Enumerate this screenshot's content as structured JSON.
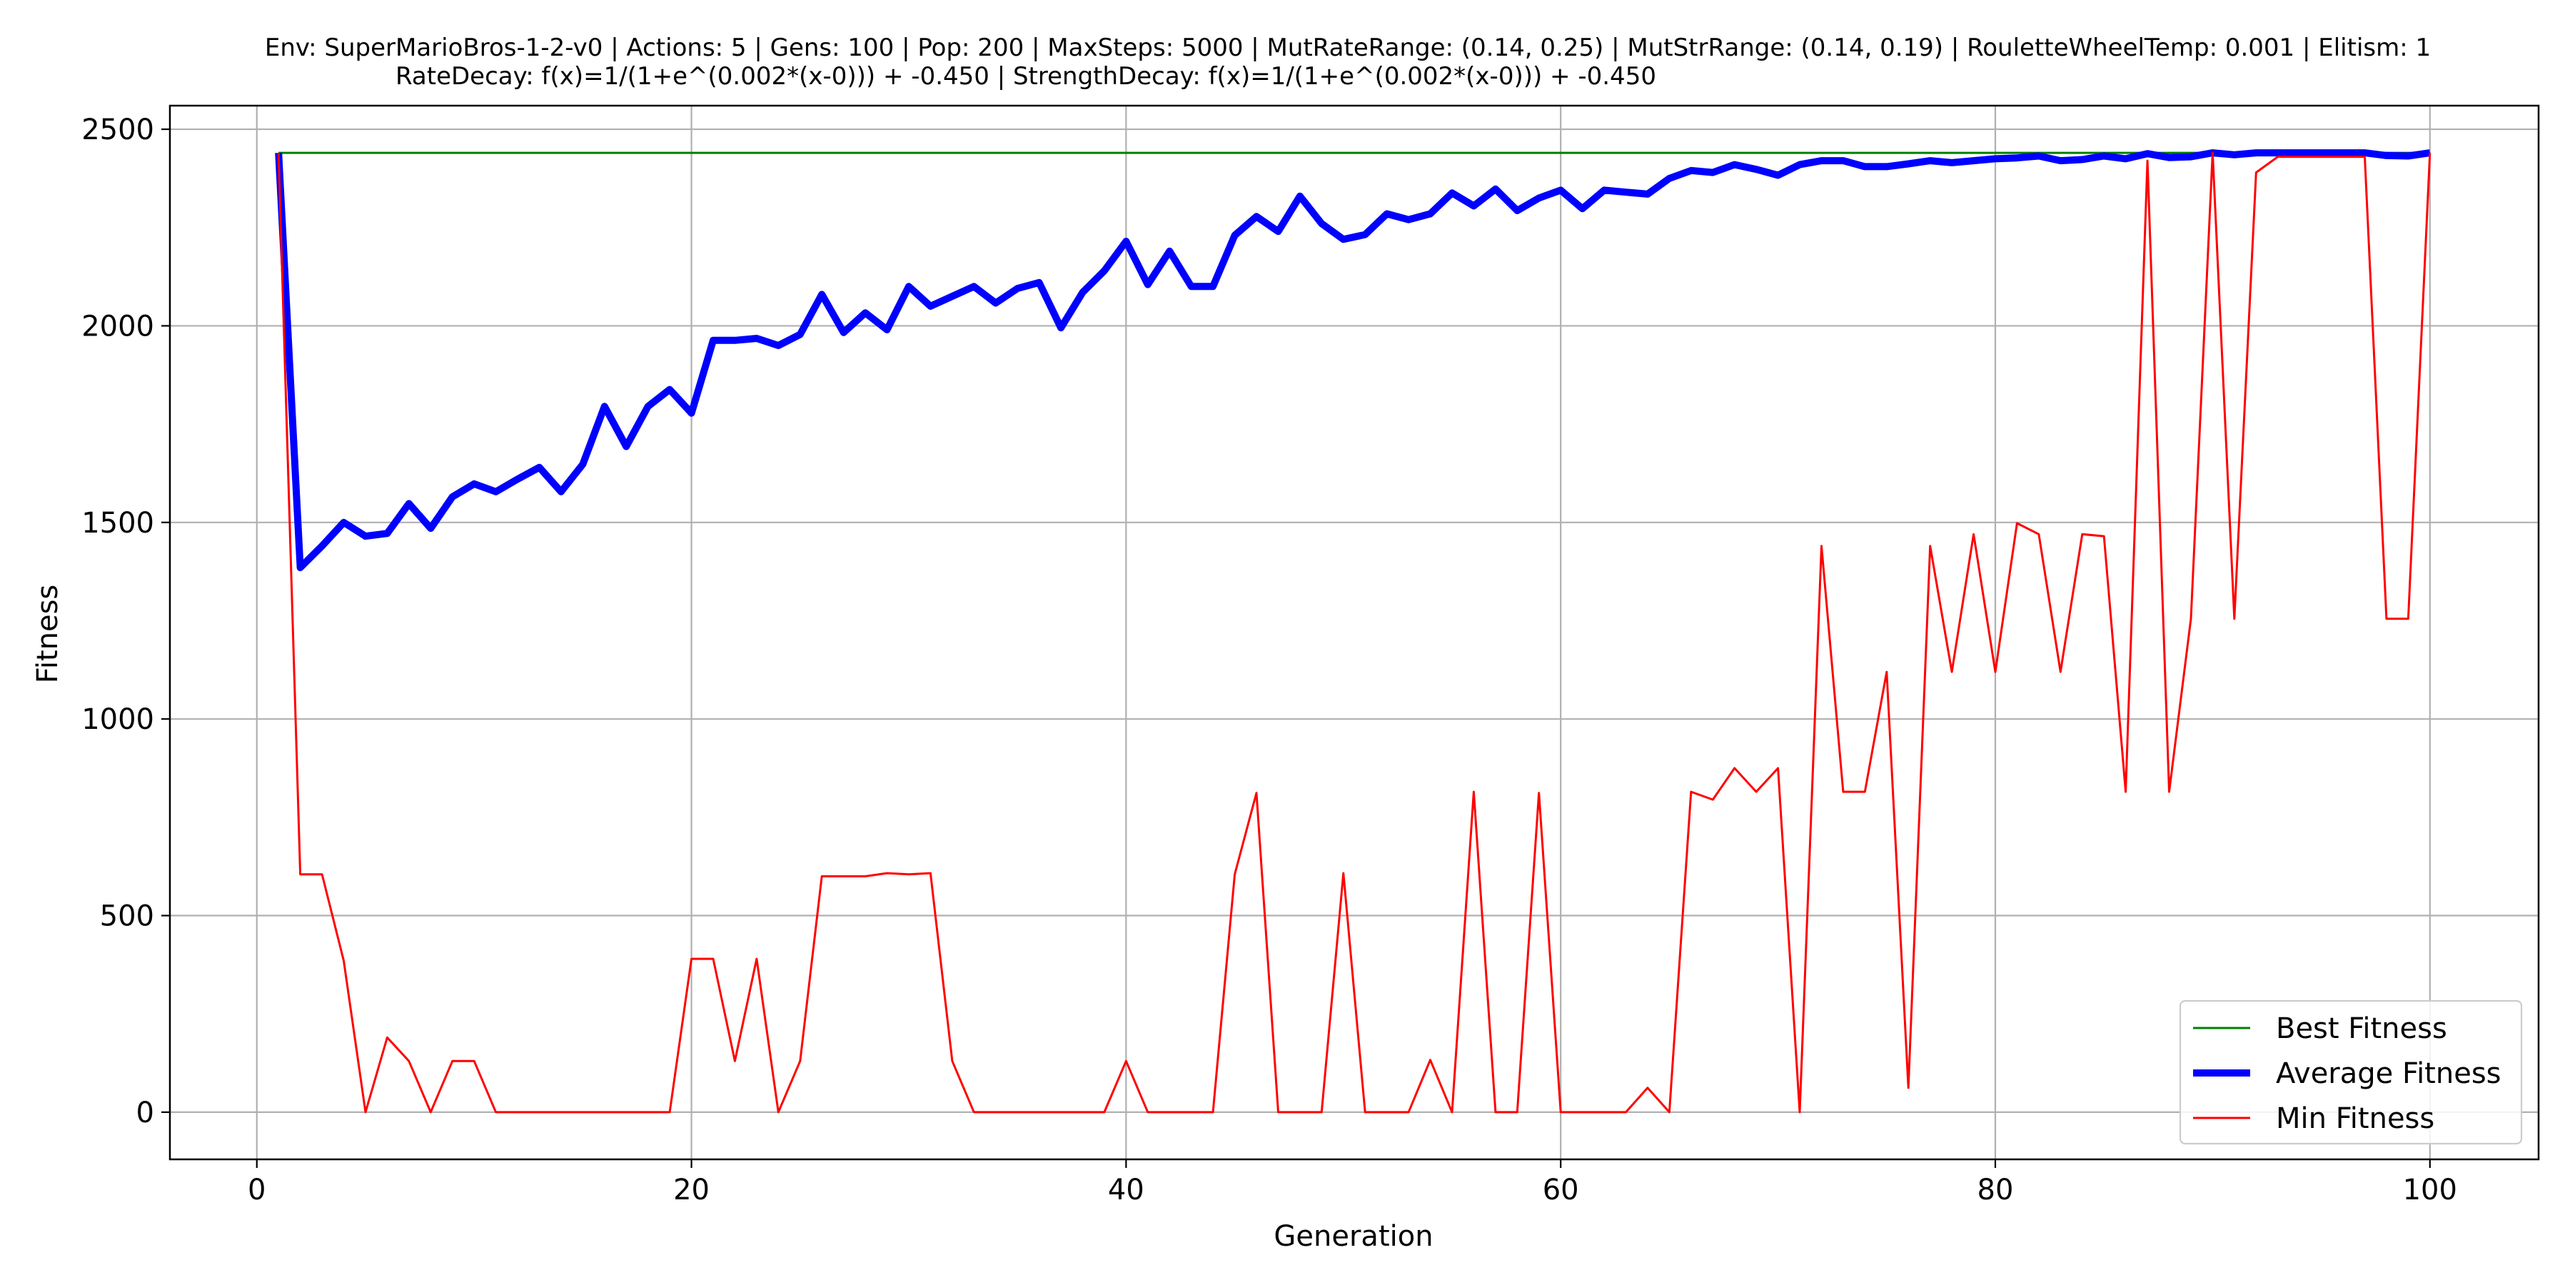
{
  "chart_data": {
    "type": "line",
    "title": "Env: SuperMarioBros-1-2-v0 | Actions: 5 | Gens: 100 | Pop: 200 | MaxSteps: 5000 | MutRateRange: (0.14, 0.25) | MutStrRange: (0.14, 0.19) | RouletteWheelTemp: 0.001 | Elitism: 1",
    "subtitle": "RateDecay: f(x)=1/(1+e^(0.002*(x-0))) + -0.450 | StrengthDecay: f(x)=1/(1+e^(0.002*(x-0))) + -0.450",
    "xlabel": "Generation",
    "ylabel": "Fitness",
    "xlim": [
      -4,
      105
    ],
    "ylim": [
      -120,
      2560
    ],
    "x_ticks": [
      0,
      20,
      40,
      60,
      80,
      100
    ],
    "y_ticks": [
      0,
      500,
      1000,
      1500,
      2000,
      2500
    ],
    "grid": true,
    "legend_position": "lower-right",
    "x": [
      1,
      2,
      3,
      4,
      5,
      6,
      7,
      8,
      9,
      10,
      11,
      12,
      13,
      14,
      15,
      16,
      17,
      18,
      19,
      20,
      21,
      22,
      23,
      24,
      25,
      26,
      27,
      28,
      29,
      30,
      31,
      32,
      33,
      34,
      35,
      36,
      37,
      38,
      39,
      40,
      41,
      42,
      43,
      44,
      45,
      46,
      47,
      48,
      49,
      50,
      51,
      52,
      53,
      54,
      55,
      56,
      57,
      58,
      59,
      60,
      61,
      62,
      63,
      64,
      65,
      66,
      67,
      68,
      69,
      70,
      71,
      72,
      73,
      74,
      75,
      76,
      77,
      78,
      79,
      80,
      81,
      82,
      83,
      84,
      85,
      86,
      87,
      88,
      89,
      90,
      91,
      92,
      93,
      94,
      95,
      96,
      97,
      98,
      99,
      100
    ],
    "series": [
      {
        "name": "Best Fitness",
        "color": "#008000",
        "width": "thin",
        "values": [
          2440,
          2440,
          2440,
          2440,
          2440,
          2440,
          2440,
          2440,
          2440,
          2440,
          2440,
          2440,
          2440,
          2440,
          2440,
          2440,
          2440,
          2440,
          2440,
          2440,
          2440,
          2440,
          2440,
          2440,
          2440,
          2440,
          2440,
          2440,
          2440,
          2440,
          2440,
          2440,
          2440,
          2440,
          2440,
          2440,
          2440,
          2440,
          2440,
          2440,
          2440,
          2440,
          2440,
          2440,
          2440,
          2440,
          2440,
          2440,
          2440,
          2440,
          2440,
          2440,
          2440,
          2440,
          2440,
          2440,
          2440,
          2440,
          2440,
          2440,
          2440,
          2440,
          2440,
          2440,
          2440,
          2440,
          2440,
          2440,
          2440,
          2440,
          2440,
          2440,
          2440,
          2440,
          2440,
          2440,
          2440,
          2440,
          2440,
          2440,
          2440,
          2440,
          2440,
          2440,
          2440,
          2440,
          2440,
          2440,
          2440,
          2440,
          2440,
          2440,
          2440,
          2440,
          2440,
          2440,
          2440,
          2440,
          2440,
          2440
        ]
      },
      {
        "name": "Average Fitness",
        "color": "#0000ff",
        "width": "thick",
        "values": [
          2440,
          1385,
          1440,
          1500,
          1465,
          1472,
          1548,
          1485,
          1565,
          1598,
          1578,
          1610,
          1640,
          1578,
          1648,
          1795,
          1693,
          1795,
          1838,
          1778,
          1963,
          1963,
          1968,
          1950,
          1978,
          2080,
          1983,
          2033,
          1990,
          2100,
          2050,
          2075,
          2100,
          2058,
          2095,
          2110,
          1995,
          2085,
          2140,
          2215,
          2105,
          2190,
          2100,
          2100,
          2230,
          2278,
          2240,
          2330,
          2260,
          2220,
          2232,
          2285,
          2270,
          2285,
          2338,
          2305,
          2348,
          2293,
          2325,
          2345,
          2298,
          2345,
          2340,
          2335,
          2375,
          2395,
          2390,
          2410,
          2398,
          2383,
          2410,
          2420,
          2420,
          2405,
          2405,
          2412,
          2420,
          2415,
          2420,
          2425,
          2427,
          2432,
          2420,
          2423,
          2432,
          2425,
          2438,
          2428,
          2430,
          2440,
          2435,
          2440,
          2440,
          2440,
          2440,
          2440,
          2440,
          2433,
          2432,
          2440
        ]
      },
      {
        "name": "Min Fitness",
        "color": "#ff0000",
        "width": "thin",
        "values": [
          2440,
          605,
          605,
          385,
          0,
          190,
          130,
          0,
          130,
          130,
          0,
          0,
          0,
          0,
          0,
          0,
          0,
          0,
          0,
          390,
          390,
          130,
          390,
          0,
          130,
          600,
          600,
          600,
          608,
          605,
          608,
          130,
          0,
          0,
          0,
          0,
          0,
          0,
          0,
          130,
          0,
          0,
          0,
          0,
          605,
          812,
          0,
          0,
          0,
          608,
          0,
          0,
          0,
          133,
          0,
          815,
          0,
          0,
          812,
          0,
          0,
          0,
          0,
          62,
          0,
          815,
          795,
          875,
          815,
          875,
          0,
          1440,
          815,
          815,
          1120,
          62,
          1440,
          1120,
          1470,
          1120,
          1498,
          1470,
          1120,
          1470,
          1465,
          815,
          2420,
          815,
          1255,
          2440,
          1255,
          2390,
          2430,
          2430,
          2430,
          2430,
          2430,
          1255,
          1255,
          2440
        ]
      }
    ]
  }
}
